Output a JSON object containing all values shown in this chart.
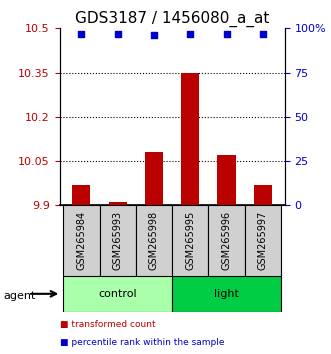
{
  "title": "GDS3187 / 1456080_a_at",
  "samples": [
    "GSM265984",
    "GSM265993",
    "GSM265998",
    "GSM265995",
    "GSM265996",
    "GSM265997"
  ],
  "bar_values": [
    9.97,
    9.91,
    10.08,
    10.35,
    10.07,
    9.97
  ],
  "percentile_values": [
    97,
    97,
    96,
    97,
    97,
    97
  ],
  "bar_color": "#bb0000",
  "percentile_color": "#0000cc",
  "groups": [
    {
      "label": "control",
      "start": 0,
      "end": 3,
      "color": "#aaffaa"
    },
    {
      "label": "light",
      "start": 3,
      "end": 6,
      "color": "#00cc44"
    }
  ],
  "group_row_label": "agent",
  "ylim_left": [
    9.9,
    10.5
  ],
  "yticks_left": [
    9.9,
    10.05,
    10.2,
    10.35,
    10.5
  ],
  "ytick_labels_left": [
    "9.9",
    "10.05",
    "10.2",
    "10.35",
    "10.5"
  ],
  "ylim_right": [
    0,
    100
  ],
  "yticks_right": [
    0,
    25,
    50,
    75,
    100
  ],
  "ytick_labels_right": [
    "0",
    "25",
    "50",
    "75",
    "100%"
  ],
  "legend_items": [
    {
      "label": "transformed count",
      "color": "#bb0000"
    },
    {
      "label": "percentile rank within the sample",
      "color": "#0000cc"
    }
  ],
  "bar_width": 0.5,
  "title_fontsize": 11,
  "tick_fontsize": 8,
  "label_fontsize": 8,
  "sample_label_fontsize": 7
}
